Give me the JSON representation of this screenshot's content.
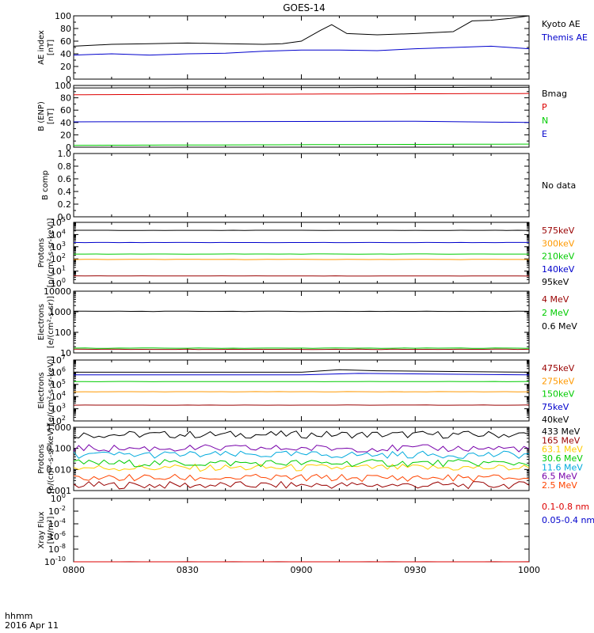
{
  "title": "GOES-14",
  "footer": {
    "unit_label": "hhmm",
    "date_label": "2016 Apr 11"
  },
  "x_axis": {
    "range": [
      "08:00",
      "10:00"
    ],
    "ticks": [
      "0800",
      "0830",
      "0900",
      "0930",
      "1000"
    ]
  },
  "chart_data": [
    {
      "id": "ae",
      "type": "line",
      "ylabel": [
        "AE index",
        "[nT]"
      ],
      "ylim": [
        0,
        100
      ],
      "yticks": [
        "0",
        "20",
        "40",
        "60",
        "80",
        "100"
      ],
      "series": [
        {
          "name": "Kyoto AE",
          "color": "#000000",
          "x": [
            "08:00",
            "08:10",
            "08:20",
            "08:30",
            "08:40",
            "08:50",
            "08:55",
            "09:00",
            "09:05",
            "09:08",
            "09:12",
            "09:20",
            "09:30",
            "09:40",
            "09:45",
            "09:50",
            "09:55",
            "10:00"
          ],
          "values": [
            52,
            55,
            56,
            57,
            56,
            55,
            56,
            60,
            77,
            86,
            72,
            70,
            72,
            75,
            92,
            93,
            96,
            100
          ]
        },
        {
          "name": "Themis AE",
          "color": "#0000cc",
          "x": [
            "08:00",
            "08:10",
            "08:20",
            "08:30",
            "08:40",
            "08:50",
            "09:00",
            "09:10",
            "09:20",
            "09:30",
            "09:40",
            "09:50",
            "10:00"
          ],
          "values": [
            38,
            40,
            38,
            40,
            41,
            44,
            46,
            46,
            45,
            48,
            50,
            52,
            48
          ]
        }
      ]
    },
    {
      "id": "bfield",
      "type": "line",
      "ylabel": [
        "B (ENP)",
        "[nT]"
      ],
      "ylim": [
        0,
        100
      ],
      "yticks": [
        "0",
        "20",
        "40",
        "60",
        "80",
        "100"
      ],
      "series": [
        {
          "name": "Bmag",
          "color": "#000000",
          "x": [
            "08:00",
            "10:00"
          ],
          "values": [
            96,
            97
          ]
        },
        {
          "name": "P",
          "color": "#dd0000",
          "x": [
            "08:00",
            "10:00"
          ],
          "values": [
            85,
            87
          ]
        },
        {
          "name": "N",
          "color": "#00cc00",
          "x": [
            "08:00",
            "10:00"
          ],
          "values": [
            3,
            5
          ]
        },
        {
          "name": "E",
          "color": "#0000cc",
          "x": [
            "08:00",
            "09:30",
            "10:00"
          ],
          "values": [
            41,
            42,
            40
          ]
        }
      ]
    },
    {
      "id": "bcomp",
      "type": "line",
      "ylabel": [
        "B comp"
      ],
      "ylim": [
        0,
        1
      ],
      "yticks": [
        "0.0",
        "0.2",
        "0.4",
        "0.6",
        "0.8",
        "1.0"
      ],
      "annotation": "No data",
      "series": []
    },
    {
      "id": "protons_low",
      "type": "line",
      "log_scale": true,
      "ylabel": [
        "Protons",
        "[p/(cm²-s-sr-keV)]"
      ],
      "ylim": [
        1,
        100000
      ],
      "yticks_exponents": [
        0,
        1,
        2,
        3,
        4,
        5
      ],
      "series": [
        {
          "name": "575keV",
          "color": "#990000",
          "x": [
            "08:00",
            "10:00"
          ],
          "values": [
            4,
            4
          ]
        },
        {
          "name": "300keV",
          "color": "#ff9900",
          "x": [
            "08:00",
            "10:00"
          ],
          "values": [
            90,
            90
          ]
        },
        {
          "name": "210keV",
          "color": "#00cc00",
          "x": [
            "08:00",
            "10:00"
          ],
          "values": [
            250,
            250
          ]
        },
        {
          "name": "140keV",
          "color": "#0000cc",
          "x": [
            "08:00",
            "10:00"
          ],
          "values": [
            2200,
            2200
          ]
        },
        {
          "name": "95keV",
          "color": "#000000",
          "x": [
            "08:00",
            "10:00"
          ],
          "values": [
            22000,
            22000
          ]
        }
      ]
    },
    {
      "id": "electrons_high",
      "type": "line",
      "log_scale": true,
      "ylabel": [
        "Electrons",
        "[e/(cm²-s-sr)]"
      ],
      "ylim": [
        10,
        10000
      ],
      "yticks": [
        "10",
        "100",
        "1000",
        "10000"
      ],
      "series": [
        {
          "name": "4 MeV",
          "color": "#990000",
          "x": [
            "08:00",
            "10:00"
          ],
          "values": [
            15,
            15
          ]
        },
        {
          "name": "2 MeV",
          "color": "#00cc00",
          "x": [
            "08:00",
            "10:00"
          ],
          "values": [
            17,
            17
          ]
        },
        {
          "name": "0.6 MeV",
          "color": "#000000",
          "x": [
            "08:00",
            "10:00"
          ],
          "values": [
            1050,
            1050
          ]
        }
      ]
    },
    {
      "id": "electrons_low",
      "type": "line",
      "log_scale": true,
      "ylabel": [
        "Electrons",
        "[e/(cm²-s-sr-keV)]"
      ],
      "ylim": [
        100,
        10000000
      ],
      "yticks_exponents": [
        2,
        3,
        4,
        5,
        6,
        7
      ],
      "series": [
        {
          "name": "475keV",
          "color": "#990000",
          "x": [
            "08:00",
            "10:00"
          ],
          "values": [
            2000,
            2000
          ]
        },
        {
          "name": "275keV",
          "color": "#ff9900",
          "x": [
            "08:00",
            "10:00"
          ],
          "values": [
            25000,
            25000
          ]
        },
        {
          "name": "150keV",
          "color": "#00cc00",
          "x": [
            "08:00",
            "10:00"
          ],
          "values": [
            170000,
            170000
          ]
        },
        {
          "name": "75keV",
          "color": "#0000cc",
          "x": [
            "08:00",
            "09:00",
            "09:15",
            "10:00"
          ],
          "values": [
            600000,
            600000,
            800000,
            600000
          ]
        },
        {
          "name": "40keV",
          "color": "#000000",
          "x": [
            "08:00",
            "09:00",
            "09:10",
            "09:20",
            "10:00"
          ],
          "values": [
            1000000,
            1000000,
            1600000,
            1300000,
            1000000
          ]
        }
      ]
    },
    {
      "id": "protons_high",
      "type": "line",
      "log_scale": true,
      "ylabel": [
        "Protons",
        "[p/(cm²-s-sr-keV)]"
      ],
      "ylim": [
        0.001,
        1
      ],
      "yticks": [
        "0.001",
        "0.010",
        "0.100",
        "1.000"
      ],
      "series": [
        {
          "name": "433 MeV",
          "color": "#000000",
          "x": [
            "08:00",
            "10:00"
          ],
          "values": [
            0.45,
            0.45
          ]
        },
        {
          "name": "165 MeV",
          "color": "#990000",
          "x": [
            "08:00",
            "10:00"
          ],
          "values": [
            0.0018,
            0.0018
          ]
        },
        {
          "name": "63.1 MeV",
          "color": "#ffcc00",
          "x": [
            "08:00",
            "10:00"
          ],
          "values": [
            0.012,
            0.012
          ]
        },
        {
          "name": "30.6 MeV",
          "color": "#00cc00",
          "x": [
            "08:00",
            "10:00"
          ],
          "values": [
            0.02,
            0.02
          ]
        },
        {
          "name": "11.6 MeV",
          "color": "#00aadd",
          "x": [
            "08:00",
            "10:00"
          ],
          "values": [
            0.05,
            0.05
          ]
        },
        {
          "name": "6.5 MeV",
          "color": "#7700aa",
          "x": [
            "08:00",
            "10:00"
          ],
          "values": [
            0.1,
            0.1
          ]
        },
        {
          "name": "2.5 MeV",
          "color": "#ff4400",
          "x": [
            "08:00",
            "10:00"
          ],
          "values": [
            0.004,
            0.004
          ]
        }
      ]
    },
    {
      "id": "xray",
      "type": "line",
      "log_scale": true,
      "ylabel": [
        "Xray Flux",
        "[W/m²]"
      ],
      "ylim": [
        1e-10,
        1
      ],
      "yticks_exponents": [
        -10,
        -8,
        -6,
        -4,
        -2,
        0
      ],
      "series": [
        {
          "name": "0.1-0.8 nm",
          "color": "#dd0000",
          "x": [
            "08:00",
            "10:00"
          ],
          "values": [
            1e-10,
            1e-10
          ]
        },
        {
          "name": "0.05-0.4 nm",
          "color": "#0000cc",
          "x": [],
          "values": []
        }
      ]
    }
  ]
}
